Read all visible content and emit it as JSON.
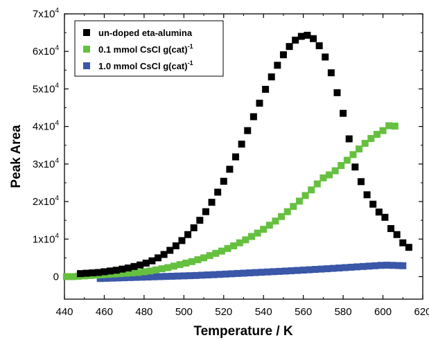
{
  "chart_data": {
    "type": "scatter",
    "xlabel": "Temperature / K",
    "ylabel": "Peak Area",
    "xlim": [
      440,
      620
    ],
    "ylim": [
      -6000,
      70000
    ],
    "x_ticks": [
      440,
      460,
      480,
      500,
      520,
      540,
      560,
      580,
      600,
      620
    ],
    "x_tick_labels": [
      "440",
      "460",
      "480",
      "500",
      "520",
      "540",
      "560",
      "580",
      "600",
      "620"
    ],
    "y_ticks": [
      0,
      10000,
      20000,
      30000,
      40000,
      50000,
      60000,
      70000
    ],
    "y_tick_labels": [
      {
        "base": "0",
        "exp": ""
      },
      {
        "base": "1x10",
        "exp": "4"
      },
      {
        "base": "2x10",
        "exp": "4"
      },
      {
        "base": "3x10",
        "exp": "4"
      },
      {
        "base": "4x10",
        "exp": "4"
      },
      {
        "base": "5x10",
        "exp": "4"
      },
      {
        "base": "6x10",
        "exp": "4"
      },
      {
        "base": "7x10",
        "exp": "4"
      }
    ],
    "grid": false,
    "legend_position": "top-left",
    "series": [
      {
        "name": "un-doped eta-alumina",
        "label_base": "un-doped eta-alumina",
        "label_sup": "",
        "color": "#000000",
        "points": [
          [
            448,
            800
          ],
          [
            451,
            900
          ],
          [
            454,
            1000
          ],
          [
            457,
            1100
          ],
          [
            460,
            1300
          ],
          [
            463,
            1500
          ],
          [
            466,
            1700
          ],
          [
            469,
            2000
          ],
          [
            472,
            2300
          ],
          [
            475,
            2700
          ],
          [
            478,
            3100
          ],
          [
            481,
            3600
          ],
          [
            484,
            4200
          ],
          [
            487,
            5000
          ],
          [
            490,
            5900
          ],
          [
            493,
            7000
          ],
          [
            496,
            8200
          ],
          [
            499,
            9600
          ],
          [
            502,
            11200
          ],
          [
            505,
            13000
          ],
          [
            508,
            15000
          ],
          [
            511,
            17300
          ],
          [
            514,
            19800
          ],
          [
            517,
            22500
          ],
          [
            520,
            25400
          ],
          [
            523,
            28600
          ],
          [
            526,
            31900
          ],
          [
            529,
            35300
          ],
          [
            532,
            38900
          ],
          [
            535,
            42600
          ],
          [
            538,
            46200
          ],
          [
            541,
            49900
          ],
          [
            544,
            53200
          ],
          [
            547,
            56300
          ],
          [
            550,
            59100
          ],
          [
            553,
            61300
          ],
          [
            556,
            63000
          ],
          [
            559,
            64000
          ],
          [
            562,
            64300
          ],
          [
            565,
            63400
          ],
          [
            568,
            61500
          ],
          [
            571,
            58500
          ],
          [
            574,
            54300
          ],
          [
            577,
            49000
          ],
          [
            580,
            43500
          ],
          [
            583,
            36700
          ],
          [
            586,
            29200
          ],
          [
            589,
            25300
          ],
          [
            592,
            21800
          ],
          [
            595,
            19300
          ],
          [
            598,
            17200
          ],
          [
            601,
            15800
          ],
          [
            604,
            12800
          ],
          [
            607,
            11200
          ],
          [
            610,
            9000
          ],
          [
            613,
            7800
          ]
        ]
      },
      {
        "name": "0.1 mmol CsCl g(cat)-1",
        "label_base": "0.1 mmol CsCl g(cat)",
        "label_sup": "-1",
        "color": "#66c040",
        "points": [
          [
            441,
            0
          ],
          [
            444,
            0
          ],
          [
            447,
            100
          ],
          [
            450,
            200
          ],
          [
            453,
            300
          ],
          [
            456,
            400
          ],
          [
            459,
            500
          ],
          [
            462,
            600
          ],
          [
            465,
            700
          ],
          [
            468,
            800
          ],
          [
            471,
            900
          ],
          [
            474,
            1000
          ],
          [
            477,
            1100
          ],
          [
            480,
            1300
          ],
          [
            483,
            1500
          ],
          [
            486,
            1800
          ],
          [
            489,
            2100
          ],
          [
            492,
            2400
          ],
          [
            495,
            2800
          ],
          [
            498,
            3200
          ],
          [
            501,
            3600
          ],
          [
            504,
            4000
          ],
          [
            507,
            4500
          ],
          [
            510,
            5000
          ],
          [
            513,
            5600
          ],
          [
            516,
            6200
          ],
          [
            519,
            6800
          ],
          [
            522,
            7500
          ],
          [
            525,
            8200
          ],
          [
            528,
            9000
          ],
          [
            531,
            9800
          ],
          [
            534,
            10700
          ],
          [
            537,
            11600
          ],
          [
            540,
            12600
          ],
          [
            543,
            13700
          ],
          [
            546,
            14800
          ],
          [
            549,
            16000
          ],
          [
            552,
            17300
          ],
          [
            555,
            18700
          ],
          [
            558,
            20100
          ],
          [
            561,
            21600
          ],
          [
            564,
            23100
          ],
          [
            567,
            24700
          ],
          [
            570,
            26300
          ],
          [
            573,
            27100
          ],
          [
            576,
            28200
          ],
          [
            579,
            29600
          ],
          [
            582,
            31000
          ],
          [
            585,
            32500
          ],
          [
            588,
            34000
          ],
          [
            591,
            35500
          ],
          [
            594,
            36800
          ],
          [
            597,
            37900
          ],
          [
            600,
            38900
          ],
          [
            603,
            40200
          ],
          [
            606,
            40100
          ]
        ]
      },
      {
        "name": "1.0 mmol CsCl g(cat)-1",
        "label_base": "1.0 mmol CsCl g(cat)",
        "label_sup": "-1",
        "color": "#3a57a8",
        "points": [
          [
            458,
            -500
          ],
          [
            461,
            -450
          ],
          [
            464,
            -400
          ],
          [
            467,
            -350
          ],
          [
            470,
            -300
          ],
          [
            473,
            -250
          ],
          [
            476,
            -200
          ],
          [
            479,
            -150
          ],
          [
            482,
            -100
          ],
          [
            485,
            -50
          ],
          [
            488,
            0
          ],
          [
            491,
            50
          ],
          [
            494,
            100
          ],
          [
            497,
            150
          ],
          [
            500,
            200
          ],
          [
            503,
            250
          ],
          [
            506,
            300
          ],
          [
            509,
            380
          ],
          [
            512,
            450
          ],
          [
            515,
            520
          ],
          [
            518,
            600
          ],
          [
            521,
            680
          ],
          [
            524,
            760
          ],
          [
            527,
            840
          ],
          [
            530,
            920
          ],
          [
            533,
            1000
          ],
          [
            536,
            1080
          ],
          [
            539,
            1160
          ],
          [
            542,
            1240
          ],
          [
            545,
            1320
          ],
          [
            548,
            1400
          ],
          [
            551,
            1480
          ],
          [
            554,
            1560
          ],
          [
            557,
            1650
          ],
          [
            560,
            1740
          ],
          [
            563,
            1830
          ],
          [
            566,
            1920
          ],
          [
            569,
            2010
          ],
          [
            572,
            2100
          ],
          [
            575,
            2200
          ],
          [
            578,
            2300
          ],
          [
            581,
            2400
          ],
          [
            584,
            2500
          ],
          [
            587,
            2600
          ],
          [
            590,
            2700
          ],
          [
            593,
            2800
          ],
          [
            596,
            2900
          ],
          [
            599,
            3000
          ],
          [
            602,
            3050
          ],
          [
            605,
            3000
          ],
          [
            608,
            2950
          ],
          [
            610,
            2900
          ]
        ]
      }
    ]
  }
}
